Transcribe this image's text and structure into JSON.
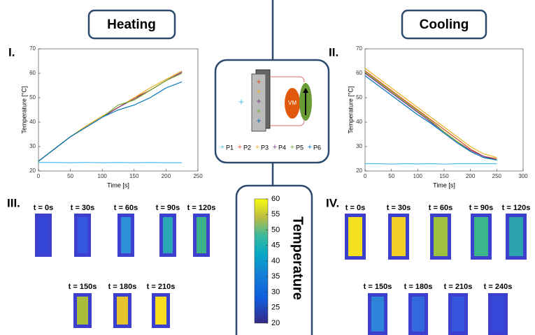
{
  "headers": {
    "heating": "Heating",
    "cooling": "Cooling"
  },
  "panels": {
    "i": "I.",
    "ii": "II.",
    "iii": "III.",
    "iv": "IV."
  },
  "diagram": {
    "vm": "VM"
  },
  "chart_data": [
    {
      "type": "line",
      "x": [
        0,
        25,
        50,
        75,
        100,
        125,
        150,
        175,
        200,
        225
      ],
      "xlim": [
        0,
        250
      ],
      "xticks": [
        0,
        50,
        100,
        150,
        200,
        250
      ],
      "ylim": [
        20,
        70
      ],
      "yticks": [
        20,
        30,
        40,
        50,
        60,
        70
      ],
      "xlabel": "Time [s]",
      "ylabel": "Temperature [°C]",
      "series": [
        {
          "name": "P1",
          "color": "#4dbeee",
          "values": [
            23.5,
            23.5,
            23.4,
            23.5,
            23.4,
            23.5,
            23.4,
            23.5,
            23.4,
            23.4
          ]
        },
        {
          "name": "P2",
          "color": "#d95319",
          "values": [
            24,
            29,
            34,
            38,
            42,
            46,
            50,
            53,
            57,
            60.5
          ]
        },
        {
          "name": "P3",
          "color": "#edb120",
          "values": [
            24,
            29,
            34,
            38.5,
            42.5,
            46,
            50,
            54,
            57.5,
            61
          ]
        },
        {
          "name": "P4",
          "color": "#7e2f8e",
          "values": [
            24,
            29,
            34,
            38,
            42,
            46,
            49.5,
            53,
            57,
            60.5
          ]
        },
        {
          "name": "P5",
          "color": "#77ac30",
          "values": [
            24,
            29,
            34,
            38,
            42,
            47,
            49,
            53,
            57,
            60
          ]
        },
        {
          "name": "P6",
          "color": "#0072bd",
          "values": [
            24,
            29,
            34,
            38,
            42,
            45,
            47,
            50,
            54,
            56.5
          ]
        }
      ]
    },
    {
      "type": "line",
      "x": [
        0,
        25,
        50,
        75,
        100,
        125,
        150,
        175,
        200,
        225,
        250
      ],
      "xlim": [
        0,
        300
      ],
      "xticks": [
        0,
        50,
        100,
        150,
        200,
        250,
        300
      ],
      "ylim": [
        20,
        70
      ],
      "yticks": [
        20,
        30,
        40,
        50,
        60,
        70
      ],
      "xlabel": "Time [s]",
      "ylabel": "Temperature [°C]",
      "series": [
        {
          "name": "P1",
          "color": "#4dbeee",
          "values": [
            23,
            23,
            22.8,
            23,
            22.9,
            23,
            22.8,
            23,
            23,
            23,
            23
          ]
        },
        {
          "name": "P2",
          "color": "#d95319",
          "values": [
            61,
            57,
            53,
            49,
            45,
            41,
            37,
            33,
            29,
            26,
            25
          ]
        },
        {
          "name": "P3",
          "color": "#edb120",
          "values": [
            62,
            58,
            54,
            50,
            46,
            42,
            38,
            34,
            30,
            27,
            25.5
          ]
        },
        {
          "name": "P4",
          "color": "#7e2f8e",
          "values": [
            60,
            56,
            52,
            48,
            44,
            40,
            36,
            32,
            28.5,
            26,
            24.5
          ]
        },
        {
          "name": "P5",
          "color": "#77ac30",
          "values": [
            60.5,
            56.5,
            52.5,
            48.5,
            44.5,
            40.5,
            36,
            32,
            28,
            25.5,
            24.5
          ]
        },
        {
          "name": "P6",
          "color": "#0072bd",
          "values": [
            59,
            55,
            51,
            47,
            43,
            39.5,
            35.5,
            31.5,
            28,
            25.5,
            24.5
          ]
        }
      ]
    }
  ],
  "colorbar": {
    "label": "Temperature",
    "lim": [
      20,
      60
    ],
    "ticks": [
      20,
      25,
      30,
      35,
      40,
      45,
      50,
      55,
      60
    ]
  },
  "heating_images": [
    {
      "label": "t = 0s",
      "inner": "#3346d8"
    },
    {
      "label": "t = 30s",
      "inner": "#3657e0"
    },
    {
      "label": "t = 60s",
      "inner": "#2f8fd6"
    },
    {
      "label": "t = 90s",
      "inner": "#2aa6b8"
    },
    {
      "label": "t = 120s",
      "inner": "#3bb28a"
    },
    {
      "label": "t = 150s",
      "inner": "#a9bd3a"
    },
    {
      "label": "t = 180s",
      "inner": "#e6c22c"
    },
    {
      "label": "t = 210s",
      "inner": "#f7dc1f"
    }
  ],
  "cooling_images": [
    {
      "label": "t = 0s",
      "inner": "#f7e01e"
    },
    {
      "label": "t = 30s",
      "inner": "#f2cf26"
    },
    {
      "label": "t = 60s",
      "inner": "#9fc03e"
    },
    {
      "label": "t = 90s",
      "inner": "#3ab58c"
    },
    {
      "label": "t = 120s",
      "inner": "#2aa3ad"
    },
    {
      "label": "t = 150s",
      "inner": "#2e84d8"
    },
    {
      "label": "t = 180s",
      "inner": "#3468de"
    },
    {
      "label": "t = 210s",
      "inner": "#3555dc"
    },
    {
      "label": "t = 240s",
      "inner": "#3548d8"
    }
  ]
}
